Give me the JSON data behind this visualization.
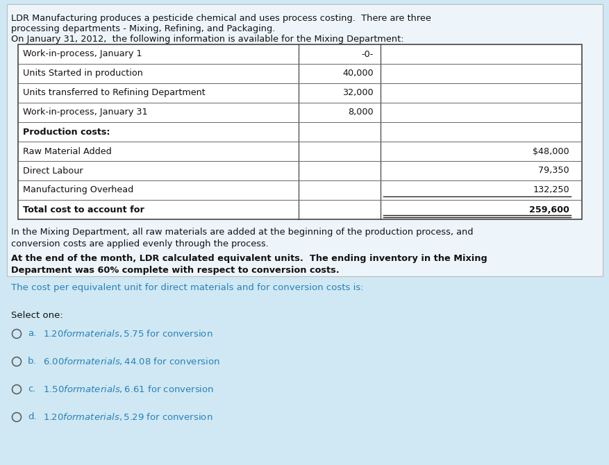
{
  "bg_color": "#cfe8f3",
  "box_bg": "#eef7fb",
  "white_bg": "#ffffff",
  "title_text1": "LDR Manufacturing produces a pesticide chemical and uses process costing.  There are three",
  "title_text2": "processing departments - Mixing, Refining, and Packaging.",
  "title_text3": "On January 31, 2012,  the following information is available for the Mixing Department:",
  "table_rows": [
    {
      "label": "Work-in-process, January 1",
      "col2": "-0-",
      "col3": "",
      "bold": false
    },
    {
      "label": "Units Started in production",
      "col2": "40,000",
      "col3": "",
      "bold": false
    },
    {
      "label": "Units transferred to Refining Department",
      "col2": "32,000",
      "col3": "",
      "bold": false
    },
    {
      "label": "Work-in-process, January 31",
      "col2": "8,000",
      "col3": "",
      "bold": false
    },
    {
      "label": "Production costs:",
      "col2": "",
      "col3": "",
      "bold": true
    },
    {
      "label": "Raw Material Added",
      "col2": "",
      "col3": "$48,000",
      "bold": false
    },
    {
      "label": "Direct Labour",
      "col2": "",
      "col3": "79,350",
      "bold": false
    },
    {
      "label": "Manufacturing Overhead",
      "col2": "",
      "col3": "132,250",
      "bold": false
    },
    {
      "label": "Total cost to account for",
      "col2": "",
      "col3": "259,600",
      "bold": true
    }
  ],
  "single_underline_rows": [
    7
  ],
  "double_underline_rows": [
    8
  ],
  "note1": "In the Mixing Department, all raw materials are added at the beginning of the production process, and",
  "note2": "conversion costs are applied evenly through the process.",
  "note3bold": "At the end of the month, LDR calculated equivalent units.  The ending inventory in the Mixing",
  "note4bold": "Department was 60% complete with respect to conversion costs.",
  "question": "The cost per equivalent unit for direct materials and for conversion costs is:",
  "select_label": "Select one:",
  "options": [
    {
      "key": "a.",
      "text": "$1.20 for materials, $5.75 for conversion"
    },
    {
      "key": "b.",
      "text": "$6.00 for materials, $44.08 for conversion"
    },
    {
      "key": "c.",
      "text": "$1.50 for materials, $6.61 for conversion"
    },
    {
      "key": "d.",
      "text": "$1.20 for materials, $5.29 for conversion"
    }
  ],
  "option_color": "#2980b9",
  "text_color": "#111111",
  "question_color": "#2980b9",
  "table_border_color": "#444444",
  "table_line_color": "#666666"
}
